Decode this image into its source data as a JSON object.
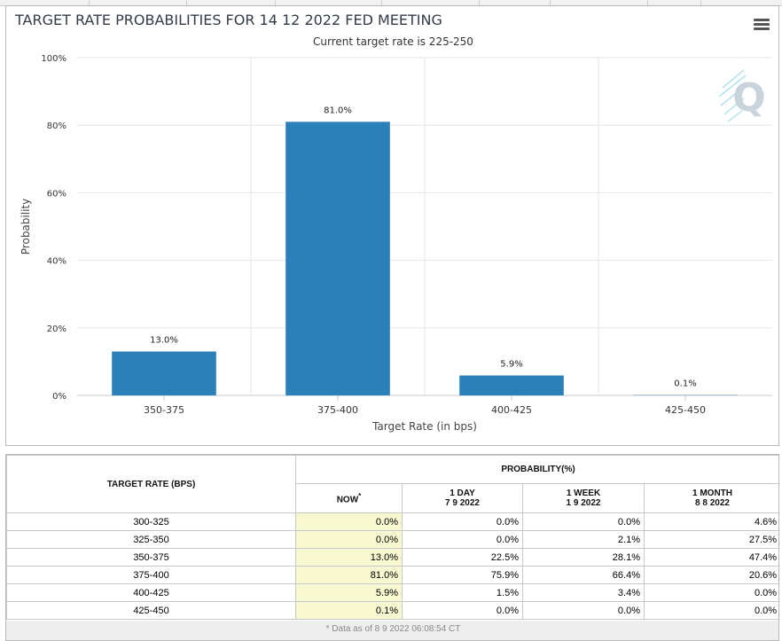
{
  "colors": {
    "bar": "#2b80b9",
    "now_column": "#f7f7d0"
  },
  "chart_data": {
    "type": "bar",
    "title": "TARGET RATE PROBABILITIES FOR 14 12 2022 FED MEETING",
    "subtitle": "Current target rate is 225-250",
    "xlabel": "Target Rate (in bps)",
    "ylabel": "Probability",
    "categories": [
      "350-375",
      "375-400",
      "400-425",
      "425-450"
    ],
    "values": [
      13.0,
      81.0,
      5.9,
      0.1
    ],
    "data_labels": [
      "13.0%",
      "81.0%",
      "5.9%",
      "0.1%"
    ],
    "ylim": [
      0,
      100
    ],
    "yticks": [
      0,
      20,
      40,
      60,
      80,
      100
    ],
    "ytick_labels": [
      "0%",
      "20%",
      "40%",
      "60%",
      "80%",
      "100%"
    ],
    "grid": true,
    "legend": "none"
  },
  "table": {
    "header_rate": "TARGET RATE (BPS)",
    "header_group": "PROBABILITY(%)",
    "columns": [
      {
        "label": "NOW",
        "sup": "*",
        "date": ""
      },
      {
        "label": "1 DAY",
        "date": "7 9 2022"
      },
      {
        "label": "1 WEEK",
        "date": "1 9 2022"
      },
      {
        "label": "1 MONTH",
        "date": "8 8 2022"
      }
    ],
    "rows": [
      {
        "rate": "300-325",
        "values": [
          "0.0%",
          "0.0%",
          "0.0%",
          "4.6%"
        ]
      },
      {
        "rate": "325-350",
        "values": [
          "0.0%",
          "0.0%",
          "2.1%",
          "27.5%"
        ]
      },
      {
        "rate": "350-375",
        "values": [
          "13.0%",
          "22.5%",
          "28.1%",
          "47.4%"
        ]
      },
      {
        "rate": "375-400",
        "values": [
          "81.0%",
          "75.9%",
          "66.4%",
          "20.6%"
        ]
      },
      {
        "rate": "400-425",
        "values": [
          "5.9%",
          "1.5%",
          "3.4%",
          "0.0%"
        ]
      },
      {
        "rate": "425-450",
        "values": [
          "0.1%",
          "0.0%",
          "0.0%",
          "0.0%"
        ]
      }
    ],
    "footnote": "* Data as of 8 9 2022 06:08:54 CT"
  }
}
